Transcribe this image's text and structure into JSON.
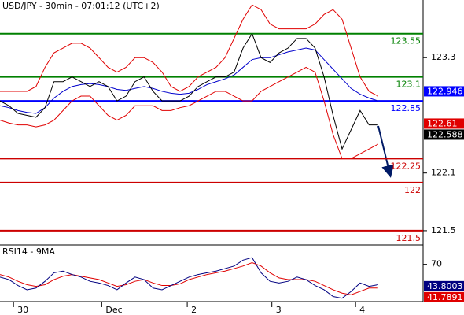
{
  "chart_data": [
    {
      "type": "line",
      "title": "USD/JPY - 30min - 07:01:12 (UTC+2)",
      "x": [
        0,
        1,
        2,
        3,
        4,
        5,
        6,
        7,
        8,
        9,
        10,
        11,
        12,
        13,
        14,
        15,
        16,
        17,
        18,
        19,
        20,
        21,
        22,
        23,
        24,
        25,
        26,
        27,
        28,
        29,
        30,
        31,
        32,
        33,
        34,
        35,
        36,
        37,
        38,
        39,
        40,
        41,
        42
      ],
      "xlim": [
        0,
        47
      ],
      "ylim": [
        121.36,
        123.9
      ],
      "yticks": [
        121.5,
        122.1,
        123.3
      ],
      "series": [
        {
          "color": "#e00000",
          "values": [
            122.95,
            122.95,
            122.95,
            122.95,
            123.0,
            123.2,
            123.35,
            123.4,
            123.45,
            123.45,
            123.4,
            123.3,
            123.2,
            123.15,
            123.2,
            123.3,
            123.3,
            123.25,
            123.15,
            123.0,
            122.95,
            123.0,
            123.1,
            123.15,
            123.2,
            123.3,
            123.5,
            123.7,
            123.85,
            123.8,
            123.65,
            123.6,
            123.6,
            123.6,
            123.6,
            123.65,
            123.75,
            123.8,
            123.7,
            123.4,
            123.1,
            122.95,
            122.9
          ]
        },
        {
          "color": "#e00000",
          "values": [
            122.65,
            122.62,
            122.6,
            122.6,
            122.58,
            122.6,
            122.65,
            122.75,
            122.85,
            122.9,
            122.9,
            122.8,
            122.7,
            122.65,
            122.7,
            122.8,
            122.8,
            122.8,
            122.75,
            122.75,
            122.78,
            122.8,
            122.85,
            122.9,
            122.95,
            122.95,
            122.9,
            122.85,
            122.85,
            122.95,
            123.0,
            123.05,
            123.1,
            123.15,
            123.2,
            123.15,
            122.85,
            122.5,
            122.25,
            122.25,
            122.3,
            122.35,
            122.4
          ]
        },
        {
          "color": "#0000cc",
          "values": [
            122.8,
            122.78,
            122.75,
            122.73,
            122.72,
            122.78,
            122.88,
            122.95,
            123.0,
            123.02,
            123.03,
            123.02,
            123.0,
            122.97,
            122.96,
            122.98,
            123.0,
            122.98,
            122.95,
            122.93,
            122.92,
            122.93,
            122.97,
            123.02,
            123.05,
            123.08,
            123.12,
            123.2,
            123.28,
            123.3,
            123.3,
            123.33,
            123.36,
            123.38,
            123.4,
            123.38,
            123.28,
            123.18,
            123.08,
            122.98,
            122.92,
            122.88,
            122.85
          ]
        },
        {
          "color": "#000000",
          "values": [
            122.85,
            122.8,
            122.72,
            122.7,
            122.68,
            122.78,
            123.05,
            123.05,
            123.1,
            123.05,
            123.0,
            123.05,
            123.0,
            122.85,
            122.9,
            123.05,
            123.1,
            122.95,
            122.85,
            122.85,
            122.85,
            122.9,
            123.0,
            123.05,
            123.1,
            123.1,
            123.15,
            123.4,
            123.55,
            123.3,
            123.25,
            123.35,
            123.4,
            123.5,
            123.5,
            123.4,
            123.1,
            122.7,
            122.35,
            122.55,
            122.75,
            122.6,
            122.6
          ]
        }
      ],
      "levels": [
        {
          "value": 123.55,
          "color": "#008000"
        },
        {
          "value": 123.1,
          "color": "#008000"
        },
        {
          "value": 122.85,
          "color": "#0000ff"
        },
        {
          "value": 122.25,
          "color": "#cc0000"
        },
        {
          "value": 122,
          "color": "#cc0000"
        },
        {
          "value": 121.5,
          "color": "#cc0000"
        }
      ],
      "price_labels": [
        {
          "value": 122.946,
          "label": "122.946",
          "color": "#0000ff"
        },
        {
          "value": 122.61,
          "label": "122.61",
          "color": "#e00000"
        },
        {
          "value": 122.588,
          "label": "122.588",
          "color": "#000000"
        }
      ]
    },
    {
      "type": "line",
      "title": "RSI14 - 9MA",
      "x": [
        0,
        1,
        2,
        3,
        4,
        5,
        6,
        7,
        8,
        9,
        10,
        11,
        12,
        13,
        14,
        15,
        16,
        17,
        18,
        19,
        20,
        21,
        22,
        23,
        24,
        25,
        26,
        27,
        28,
        29,
        30,
        31,
        32,
        33,
        34,
        35,
        36,
        37,
        38,
        39,
        40,
        41,
        42
      ],
      "xlim": [
        0,
        47
      ],
      "ylim": [
        26,
        92
      ],
      "yticks": [
        70
      ],
      "xticks": [
        {
          "value": 1.5,
          "label": "30"
        },
        {
          "value": 11.3,
          "label": "Dec"
        },
        {
          "value": 20.8,
          "label": "2"
        },
        {
          "value": 30.2,
          "label": "3"
        },
        {
          "value": 39.5,
          "label": "4"
        }
      ],
      "series": [
        {
          "color": "#e00000",
          "values": [
            58,
            55,
            50,
            46,
            44,
            46,
            52,
            56,
            58,
            56,
            54,
            52,
            48,
            44,
            46,
            50,
            52,
            48,
            45,
            45,
            47,
            52,
            55,
            58,
            60,
            62,
            65,
            68,
            72,
            68,
            60,
            54,
            52,
            52,
            52,
            50,
            45,
            40,
            36,
            34,
            38,
            42,
            42
          ]
        },
        {
          "color": "#000080",
          "values": [
            55,
            52,
            45,
            40,
            42,
            50,
            60,
            62,
            58,
            55,
            50,
            48,
            45,
            40,
            48,
            55,
            52,
            42,
            40,
            45,
            50,
            55,
            58,
            60,
            62,
            65,
            68,
            75,
            78,
            60,
            50,
            48,
            50,
            55,
            52,
            45,
            40,
            32,
            30,
            38,
            48,
            44,
            46
          ]
        }
      ],
      "price_labels": [
        {
          "value": 43.8003,
          "label": "43.8003",
          "color": "#000080"
        },
        {
          "value": 41.7891,
          "label": "41.7891",
          "color": "#e00000"
        }
      ]
    }
  ]
}
